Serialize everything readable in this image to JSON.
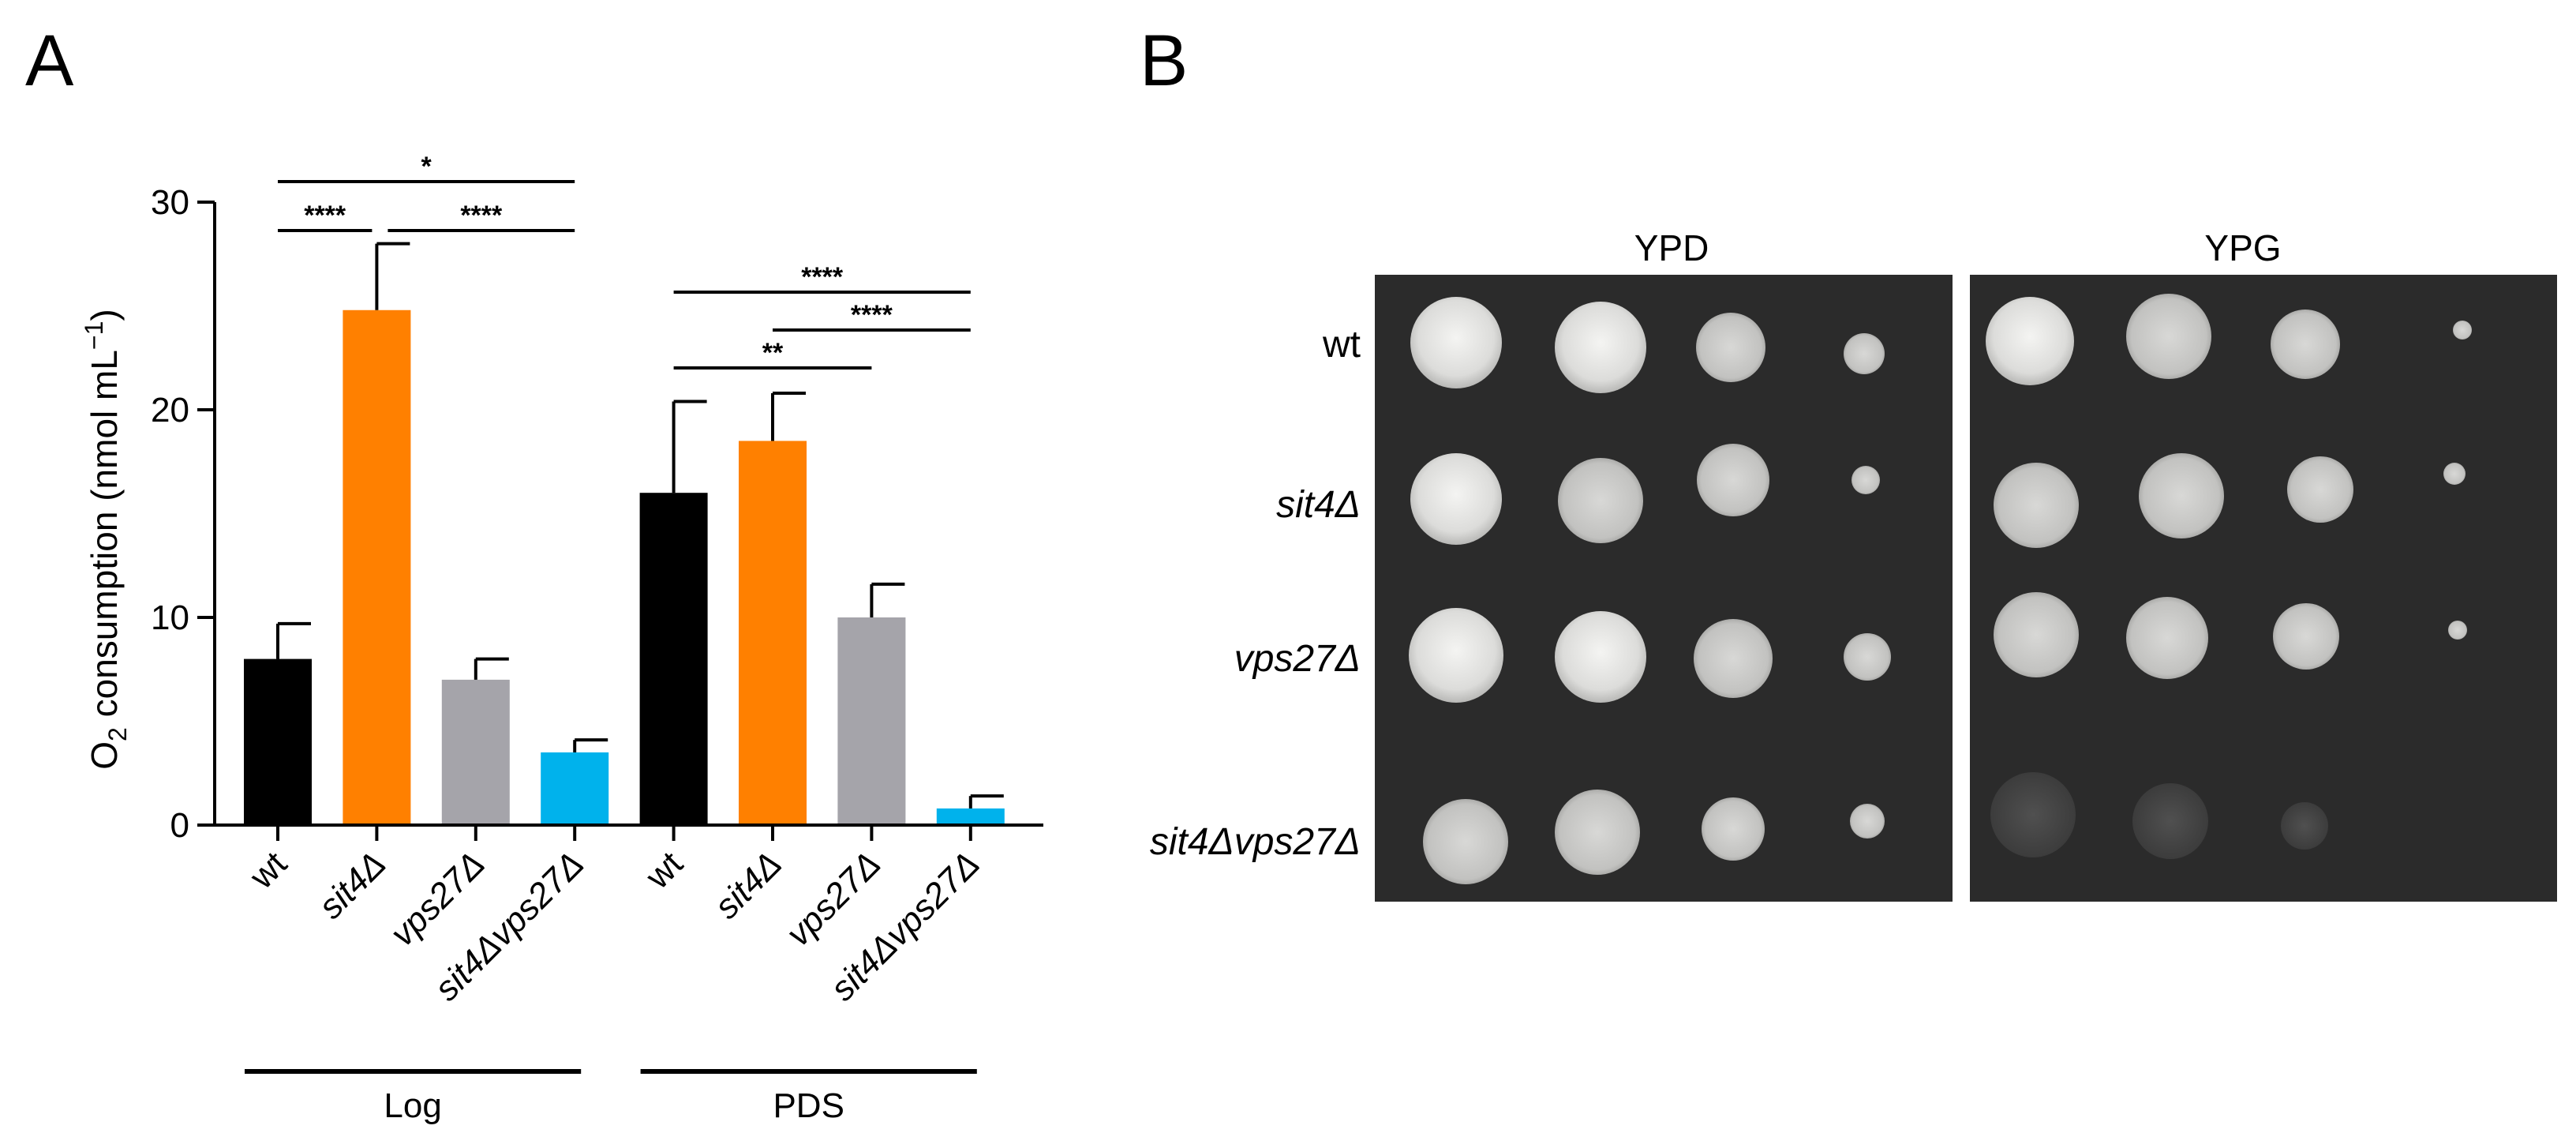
{
  "panels": {
    "a_label": "A",
    "b_label": "B"
  },
  "chart_data": {
    "type": "bar",
    "title": "",
    "ylabel_parts": {
      "pre": "O",
      "sub": "2",
      "mid": " consumption (nmol mL",
      "sup": "−1",
      "post": ")"
    },
    "ylim": [
      0,
      30
    ],
    "yticks": [
      "0",
      "10",
      "20",
      "30"
    ],
    "categories": [
      "wt",
      "sit4Δ",
      "vps27Δ",
      "sit4Δvps27Δ",
      "wt",
      "sit4Δ",
      "vps27Δ",
      "sit4Δvps27Δ"
    ],
    "category_italic": [
      false,
      true,
      true,
      true,
      false,
      true,
      true,
      true
    ],
    "values": [
      8.0,
      24.8,
      7.0,
      3.5,
      16.0,
      18.5,
      10.0,
      0.8
    ],
    "errors": [
      1.7,
      3.2,
      1.0,
      0.6,
      4.4,
      2.3,
      1.6,
      0.6
    ],
    "colors": [
      "#000000",
      "#ff8000",
      "#a5a4aa",
      "#00b2ec",
      "#000000",
      "#ff8000",
      "#a5a4aa",
      "#00b2ec"
    ],
    "groups": [
      {
        "label": "Log",
        "from": 0,
        "to": 3
      },
      {
        "label": "PDS",
        "from": 4,
        "to": 7
      }
    ],
    "significance": [
      {
        "from": 0,
        "to": 3,
        "label": "*",
        "y_level": 0
      },
      {
        "from": 0,
        "to": 1,
        "label": "****",
        "y_level": 1
      },
      {
        "from": 1,
        "to": 3,
        "label": "****",
        "y_level": 1
      },
      {
        "from": 4,
        "to": 7,
        "label": "****",
        "y_level": 0
      },
      {
        "from": 5,
        "to": 7,
        "label": "****",
        "y_level": 1
      },
      {
        "from": 4,
        "to": 6,
        "label": "**",
        "y_level": 2
      }
    ],
    "grid": false
  },
  "plates": {
    "titles": [
      "YPD",
      "YPG"
    ],
    "rows": [
      "wt",
      "sit4Δ",
      "vps27Δ",
      "sit4Δvps27Δ"
    ],
    "rows_italic": [
      false,
      true,
      true,
      true
    ]
  }
}
